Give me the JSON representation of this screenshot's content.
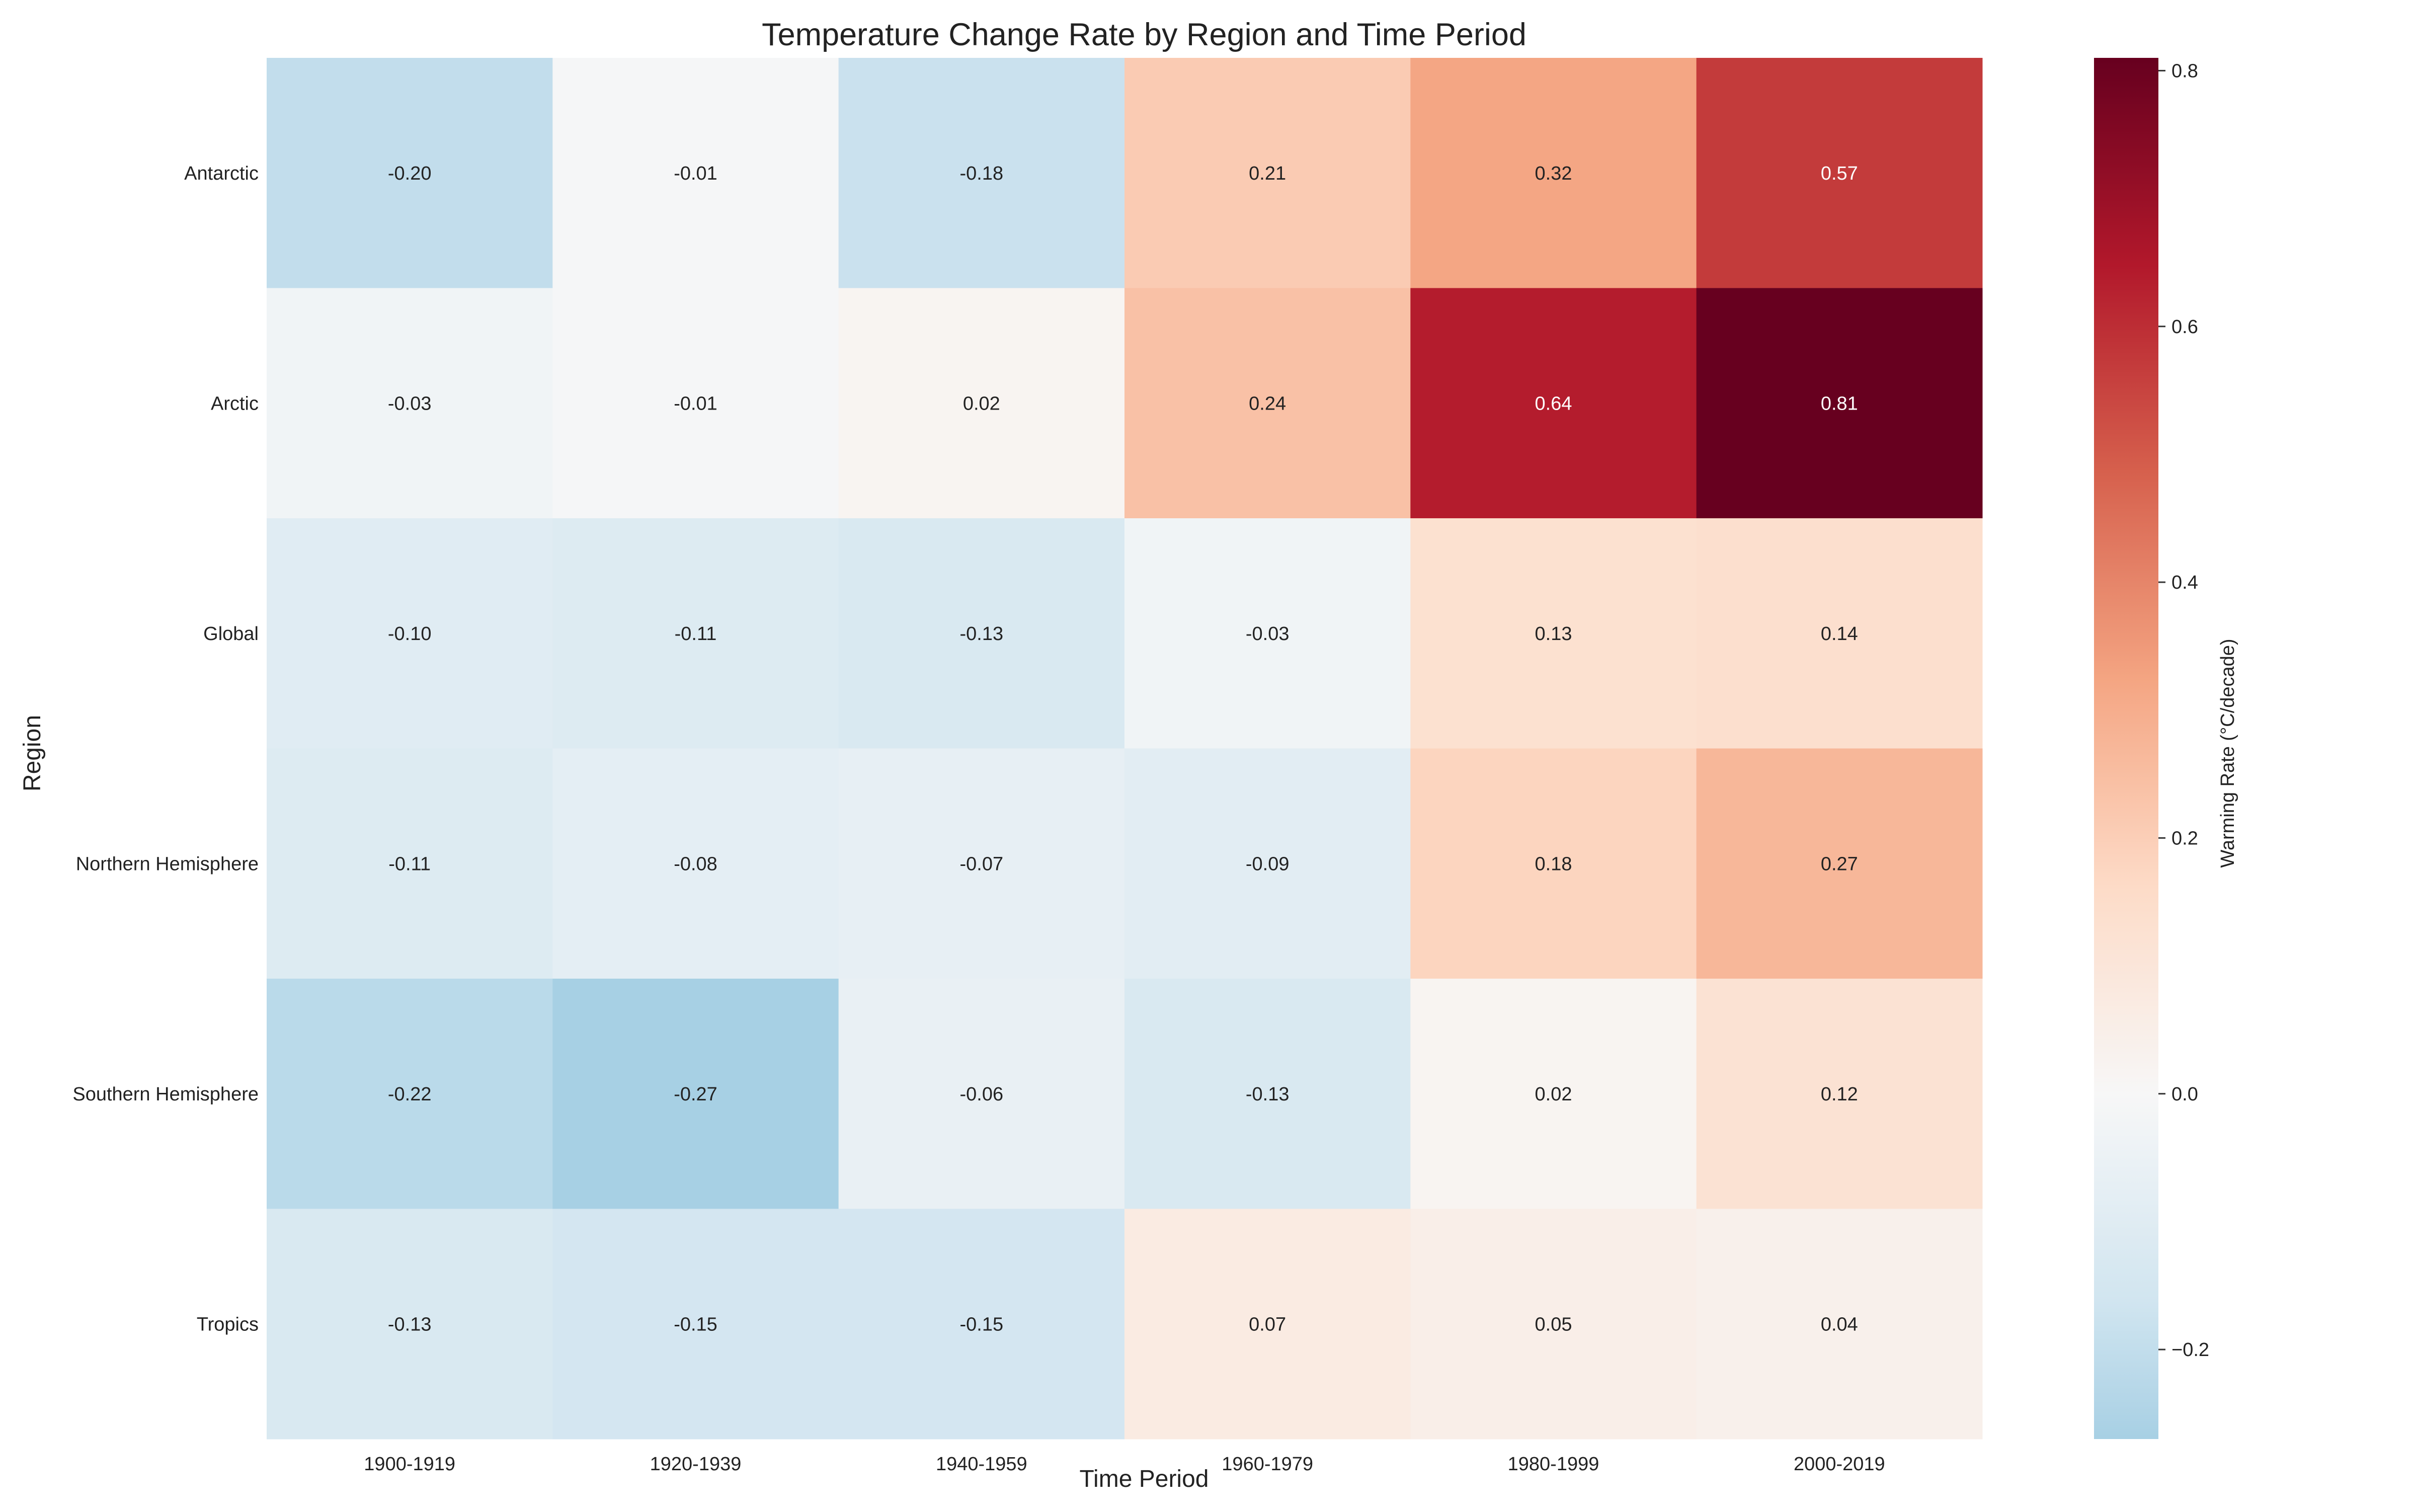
{
  "chart_data": {
    "type": "heatmap",
    "title": "Temperature Change Rate by Region and Time Period",
    "xlabel": "Time Period",
    "ylabel": "Region",
    "x_categories": [
      "1900-1919",
      "1920-1939",
      "1940-1959",
      "1960-1979",
      "1980-1999",
      "2000-2019"
    ],
    "y_categories": [
      "Antarctic",
      "Arctic",
      "Global",
      "Northern Hemisphere",
      "Southern Hemisphere",
      "Tropics"
    ],
    "values": [
      [
        -0.2,
        -0.01,
        -0.18,
        0.21,
        0.32,
        0.57
      ],
      [
        -0.03,
        -0.01,
        0.02,
        0.24,
        0.64,
        0.81
      ],
      [
        -0.1,
        -0.11,
        -0.13,
        -0.03,
        0.13,
        0.14
      ],
      [
        -0.11,
        -0.08,
        -0.07,
        -0.09,
        0.18,
        0.27
      ],
      [
        -0.22,
        -0.27,
        -0.06,
        -0.13,
        0.02,
        0.12
      ],
      [
        -0.13,
        -0.15,
        -0.15,
        0.07,
        0.05,
        0.04
      ]
    ],
    "cell_labels": [
      [
        "-0.20",
        "-0.01",
        "-0.18",
        "0.21",
        "0.32",
        "0.57"
      ],
      [
        "-0.03",
        "-0.01",
        "0.02",
        "0.24",
        "0.64",
        "0.81"
      ],
      [
        "-0.10",
        "-0.11",
        "-0.13",
        "-0.03",
        "0.13",
        "0.14"
      ],
      [
        "-0.11",
        "-0.08",
        "-0.07",
        "-0.09",
        "0.18",
        "0.27"
      ],
      [
        "-0.22",
        "-0.27",
        "-0.06",
        "-0.13",
        "0.02",
        "0.12"
      ],
      [
        "-0.13",
        "-0.15",
        "-0.15",
        "0.07",
        "0.05",
        "0.04"
      ]
    ],
    "colormap": "RdBu_r",
    "center": 0.0,
    "vmin": -0.27,
    "vmax": 0.81,
    "colorbar": {
      "label": "Warming Rate (°C/decade)",
      "ticks": [
        -0.2,
        0.0,
        0.2,
        0.4,
        0.6,
        0.8
      ],
      "tick_labels": [
        "−0.2",
        "0.0",
        "0.2",
        "0.4",
        "0.6",
        "0.8"
      ]
    },
    "grid": false
  }
}
